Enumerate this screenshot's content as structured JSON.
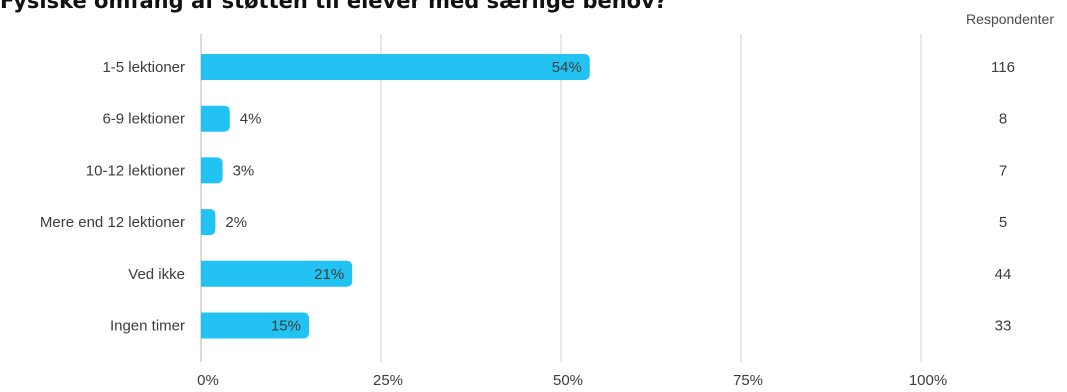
{
  "title": "Fysiske omfang af støtten til elever med særlige behov?",
  "chart_data": {
    "type": "bar",
    "orientation": "horizontal",
    "categories": [
      "1-5 lektioner",
      "6-9 lektioner",
      "10-12 lektioner",
      "Mere end 12 lektioner",
      "Ved ikke",
      "Ingen timer"
    ],
    "values": [
      54,
      4,
      3,
      2,
      21,
      15
    ],
    "value_labels": [
      "54%",
      "4%",
      "3%",
      "2%",
      "21%",
      "15%"
    ],
    "respondents_header": "Respondenter",
    "respondents": [
      116,
      8,
      7,
      5,
      44,
      33
    ],
    "xlim": [
      0,
      100
    ],
    "xticks": [
      0,
      25,
      50,
      75,
      100
    ],
    "xtick_labels": [
      "0%",
      "25%",
      "50%",
      "75%",
      "100%"
    ],
    "bar_color": "#22c3f3",
    "grid": true
  }
}
